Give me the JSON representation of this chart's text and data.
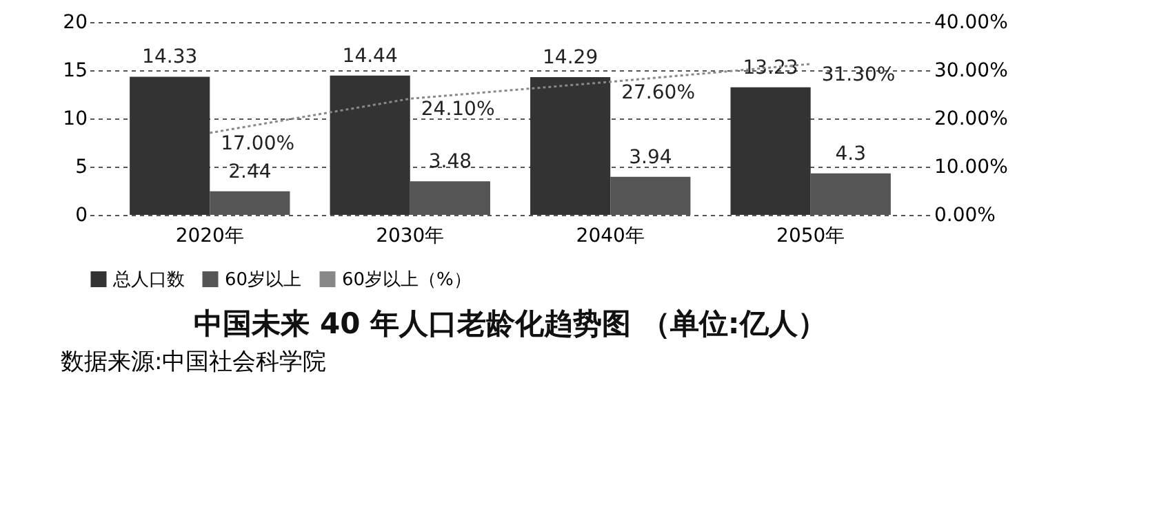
{
  "chart_data": {
    "type": "bar",
    "title": "中国未来 40 年人口老龄化趋势图 （单位:亿人）",
    "categories": [
      "2020年",
      "2030年",
      "2040年",
      "2050年"
    ],
    "series": [
      {
        "name": "总人口数",
        "color": "#333333",
        "values": [
          14.33,
          14.44,
          14.29,
          13.23
        ]
      },
      {
        "name": "60岁以上",
        "color": "#555555",
        "values": [
          2.44,
          3.48,
          3.94,
          4.3
        ]
      },
      {
        "name": "60岁以上（%）",
        "type": "line",
        "axis": "y2",
        "color": "#888888",
        "line_style": "dotted",
        "values": [
          17.0,
          24.1,
          27.6,
          31.3
        ],
        "value_labels": [
          "17.00%",
          "24.10%",
          "27.60%",
          "31.30%"
        ]
      }
    ],
    "ylim": [
      0,
      20
    ],
    "yticks": [
      0,
      5,
      10,
      15,
      20
    ],
    "y2lim": [
      0,
      40
    ],
    "y2ticks": [
      {
        "value": 0,
        "label": "0.00%"
      },
      {
        "value": 10,
        "label": "10.00%"
      },
      {
        "value": 20,
        "label": "20.00%"
      },
      {
        "value": 30,
        "label": "30.00%"
      },
      {
        "value": 40,
        "label": "40.00%"
      }
    ],
    "data_labels": true,
    "grid": "y",
    "legend": "bottom",
    "annotations": [
      "数据来源:中国社会科学院"
    ]
  }
}
